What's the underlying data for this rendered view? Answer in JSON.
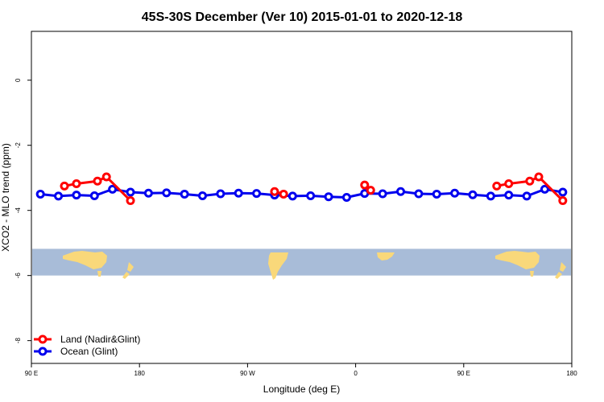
{
  "chart_data": {
    "type": "line",
    "title": "45S-30S December (Ver 10)   2015-01-01 to 2020-12-18",
    "xlabel": "Longitude (deg E)",
    "ylabel": "XCO2 - MLO trend (ppm)",
    "xlim": [
      90,
      540
    ],
    "ylim": [
      -8.7,
      1.5
    ],
    "x_ticks": [
      {
        "value": 90,
        "label": "90 E"
      },
      {
        "value": 180,
        "label": "180"
      },
      {
        "value": 270,
        "label": "90 W"
      },
      {
        "value": 360,
        "label": "0"
      },
      {
        "value": 450,
        "label": "90 E"
      },
      {
        "value": 540,
        "label": "180"
      }
    ],
    "y_ticks": [
      {
        "value": 0,
        "label": "0"
      },
      {
        "value": -2,
        "label": "-2"
      },
      {
        "value": -4,
        "label": "-4"
      },
      {
        "value": -6,
        "label": "-6"
      },
      {
        "value": -8,
        "label": "-8"
      }
    ],
    "grid": false,
    "legend_position": "bottom-left",
    "map_strip": {
      "y_top": -5.18,
      "y_bottom": -6.0,
      "ocean_color": "#a8bcd8",
      "land_color": "#f9d87a"
    },
    "series": [
      {
        "name": "Land (Nadir&Glint)",
        "color": "#ff0000",
        "segments": [
          [
            [
              117.5,
              -3.25
            ],
            [
              127.5,
              -3.18
            ],
            [
              145,
              -3.1
            ],
            [
              152.5,
              -2.97
            ],
            [
              172.5,
              -3.7
            ]
          ],
          [
            [
              292.5,
              -3.42
            ],
            [
              300,
              -3.5
            ]
          ],
          [
            [
              367.5,
              -3.22
            ],
            [
              372.5,
              -3.38
            ]
          ],
          [
            [
              477.5,
              -3.25
            ],
            [
              487.5,
              -3.18
            ],
            [
              505,
              -3.1
            ],
            [
              512.5,
              -2.97
            ],
            [
              532.5,
              -3.7
            ]
          ]
        ]
      },
      {
        "name": "Ocean (Glint)",
        "color": "#0000ee",
        "segments": [
          [
            [
              97.5,
              -3.5
            ],
            [
              112.5,
              -3.56
            ],
            [
              127.5,
              -3.53
            ],
            [
              142.5,
              -3.55
            ],
            [
              157.5,
              -3.35
            ],
            [
              172.5,
              -3.44
            ],
            [
              187.5,
              -3.47
            ],
            [
              202.5,
              -3.46
            ],
            [
              217.5,
              -3.5
            ],
            [
              232.5,
              -3.55
            ],
            [
              247.5,
              -3.49
            ],
            [
              262.5,
              -3.47
            ],
            [
              277.5,
              -3.48
            ],
            [
              292.5,
              -3.53
            ],
            [
              307.5,
              -3.56
            ],
            [
              322.5,
              -3.55
            ],
            [
              337.5,
              -3.58
            ],
            [
              352.5,
              -3.6
            ],
            [
              367.5,
              -3.48
            ],
            [
              382.5,
              -3.49
            ],
            [
              397.5,
              -3.42
            ],
            [
              412.5,
              -3.49
            ],
            [
              427.5,
              -3.5
            ],
            [
              442.5,
              -3.47
            ],
            [
              457.5,
              -3.52
            ],
            [
              472.5,
              -3.56
            ],
            [
              487.5,
              -3.53
            ],
            [
              502.5,
              -3.56
            ],
            [
              517.5,
              -3.35
            ],
            [
              532.5,
              -3.44
            ]
          ]
        ]
      }
    ]
  }
}
